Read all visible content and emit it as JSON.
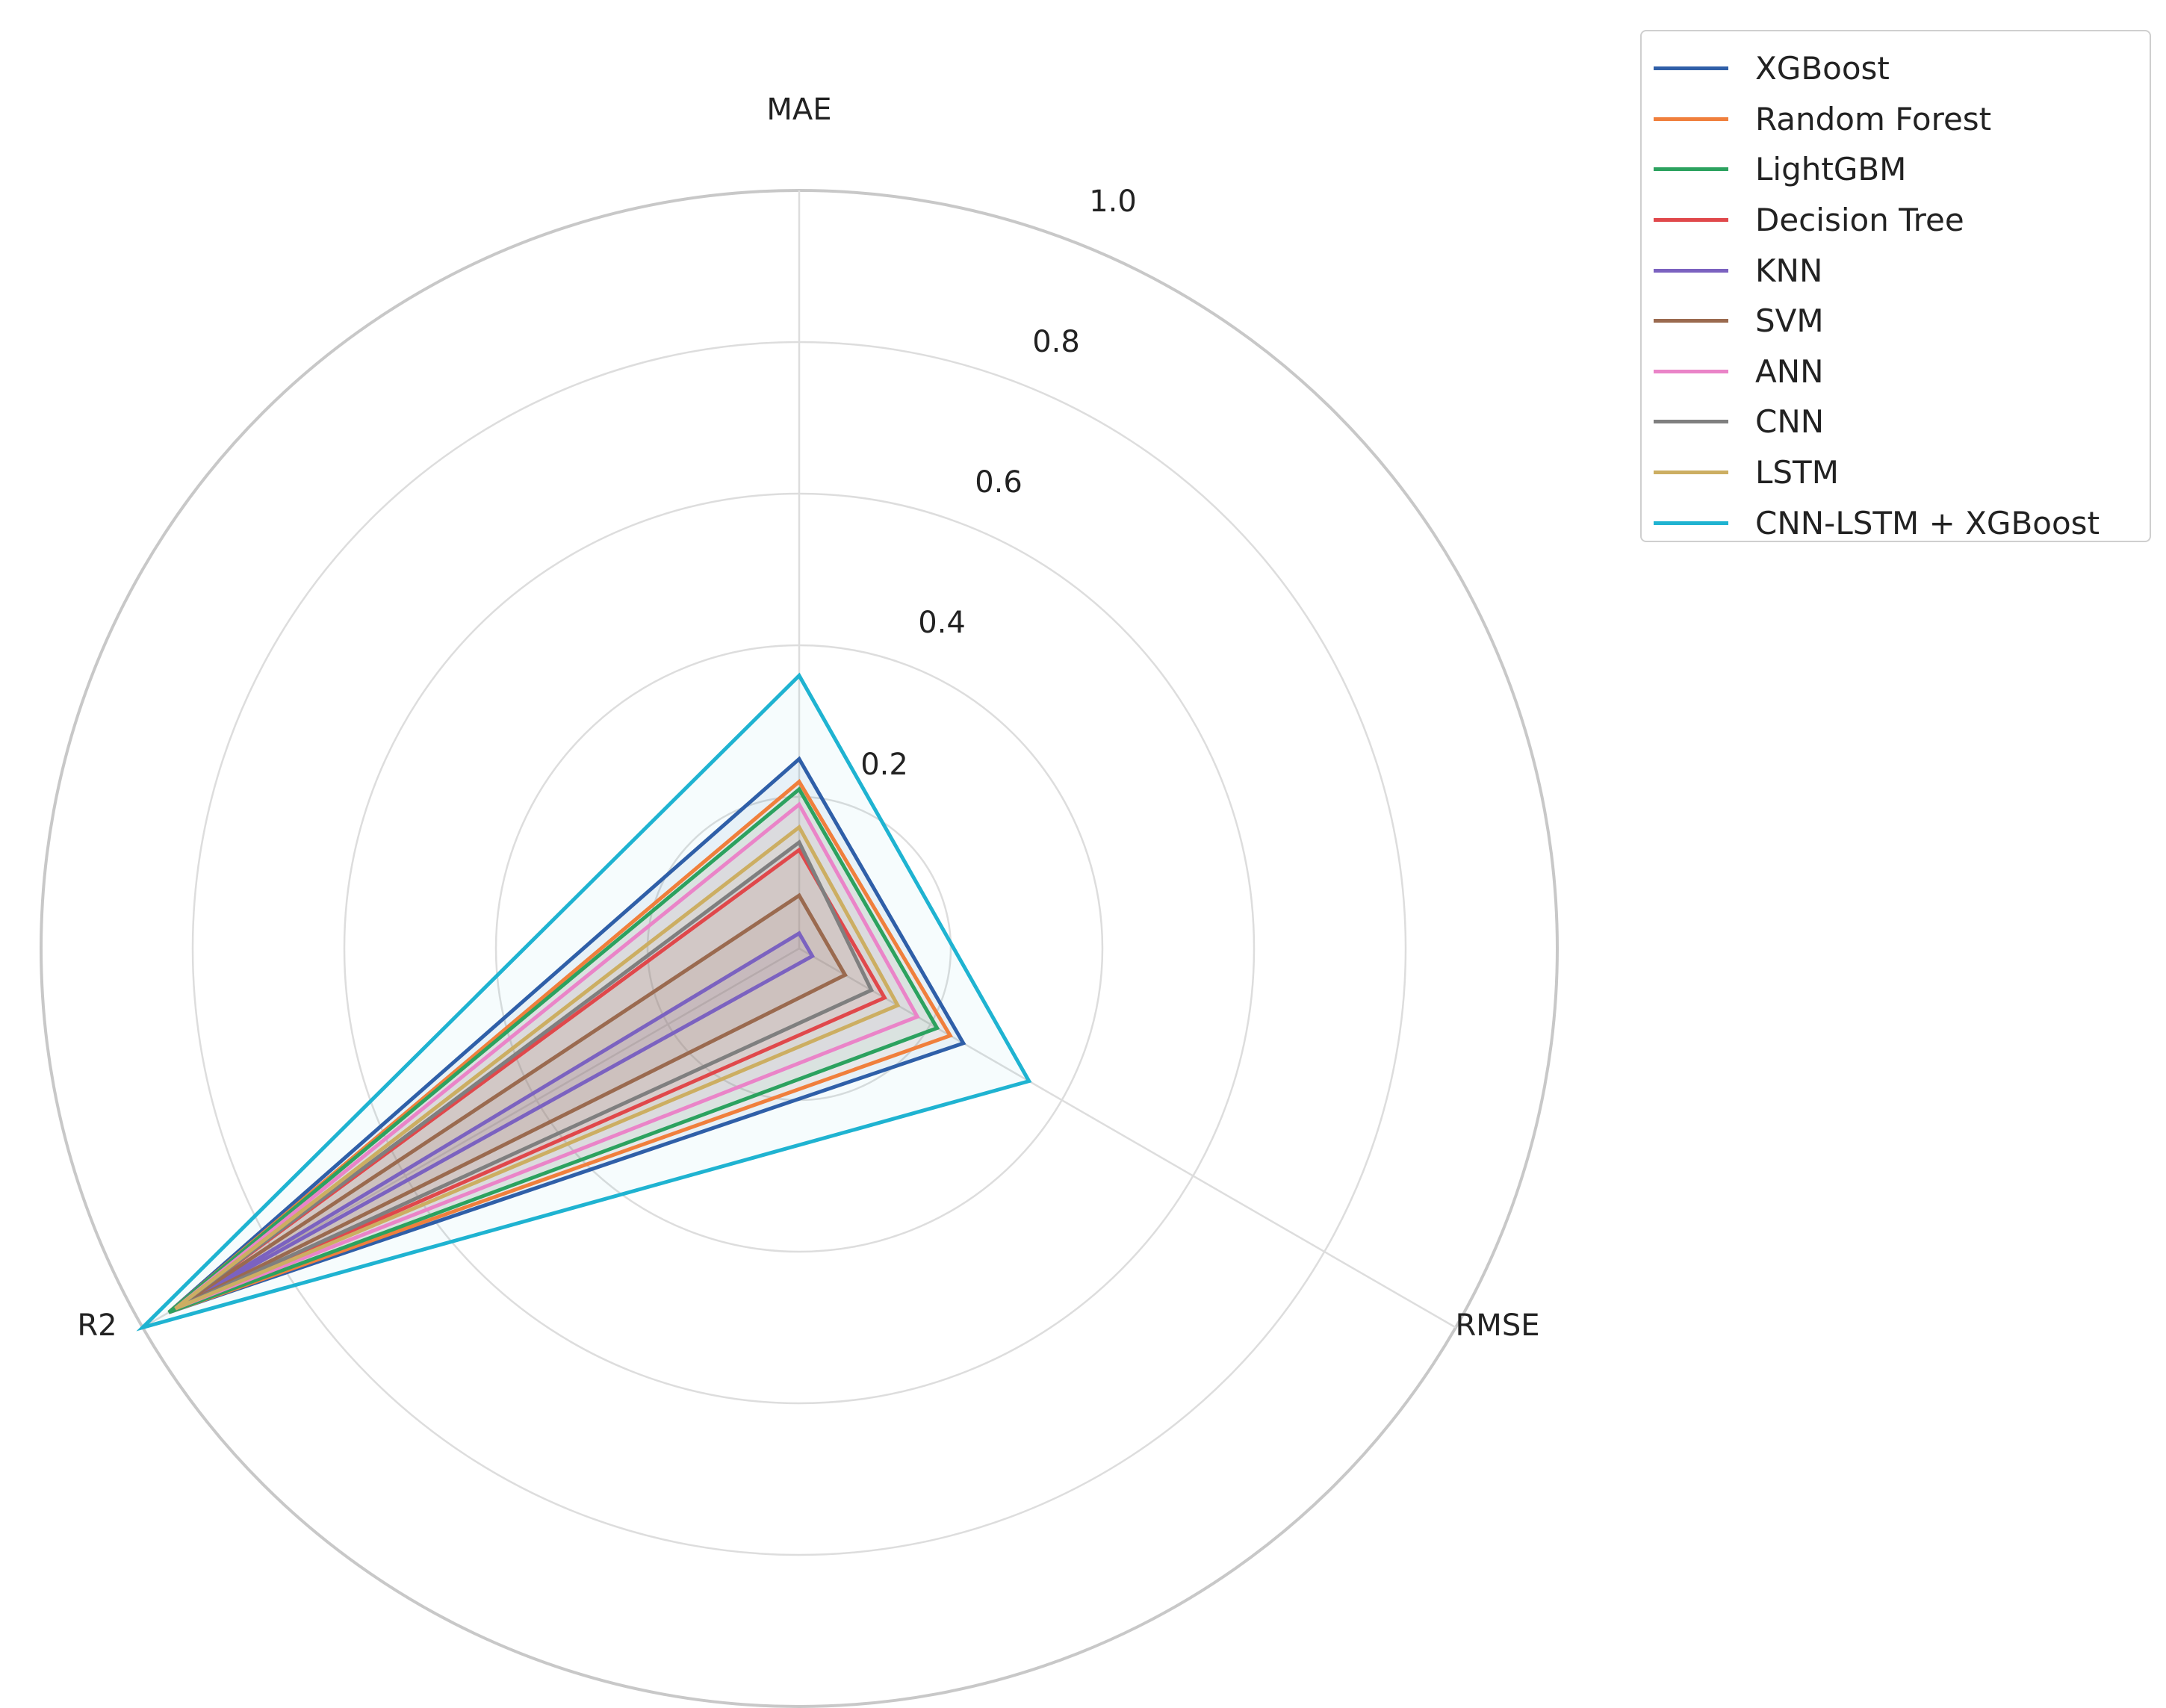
{
  "chart_data": {
    "type": "radar",
    "title": "",
    "axes": [
      "MAE",
      "RMSE",
      "R2"
    ],
    "rlim": [
      0,
      1.0
    ],
    "rticks": [
      "0.2",
      "0.4",
      "0.6",
      "0.8",
      "1.0"
    ],
    "rtick_values": [
      0.2,
      0.4,
      0.6,
      0.8,
      1.0
    ],
    "grid": true,
    "legend_position": "top-right",
    "series": [
      {
        "name": "XGBoost",
        "color": "#2f5fa8",
        "values": [
          0.25,
          0.25,
          0.96
        ]
      },
      {
        "name": "Random Forest",
        "color": "#f07f3c",
        "values": [
          0.22,
          0.23,
          0.96
        ]
      },
      {
        "name": "LightGBM",
        "color": "#2ca25f",
        "values": [
          0.21,
          0.21,
          0.96
        ]
      },
      {
        "name": "Decision Tree",
        "color": "#e0484b",
        "values": [
          0.13,
          0.13,
          0.95
        ]
      },
      {
        "name": "KNN",
        "color": "#7b62c0",
        "values": [
          0.02,
          0.02,
          0.95
        ]
      },
      {
        "name": "SVM",
        "color": "#9a6a4f",
        "values": [
          0.07,
          0.07,
          0.95
        ]
      },
      {
        "name": "ANN",
        "color": "#ea84c8",
        "values": [
          0.19,
          0.18,
          0.95
        ]
      },
      {
        "name": "CNN",
        "color": "#7f7f7f",
        "values": [
          0.14,
          0.11,
          0.95
        ]
      },
      {
        "name": "LSTM",
        "color": "#ccae62",
        "values": [
          0.16,
          0.15,
          0.95
        ]
      },
      {
        "name": "CNN-LSTM + XGBoost",
        "color": "#1fb3d1",
        "values": [
          0.36,
          0.35,
          1.0
        ]
      }
    ]
  }
}
